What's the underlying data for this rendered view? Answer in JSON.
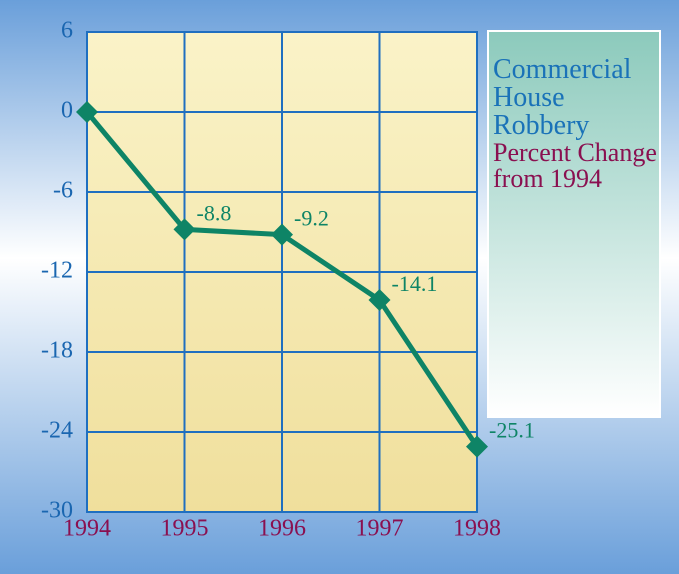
{
  "chart_data": {
    "type": "line",
    "title": "Commercial House Robbery",
    "subtitle": "Percent Change from 1994",
    "categories": [
      "1994",
      "1995",
      "1996",
      "1997",
      "1998"
    ],
    "values": [
      0,
      -8.8,
      -9.2,
      -14.1,
      -25.1
    ],
    "value_labels": [
      null,
      "-8.8",
      "-9.2",
      "-14.1",
      "-25.1"
    ],
    "color": "#0e8466",
    "ylim": [
      -30,
      6
    ],
    "yticks": [
      -30,
      -24,
      -18,
      -12,
      -6,
      0,
      6
    ],
    "grid": true
  }
}
